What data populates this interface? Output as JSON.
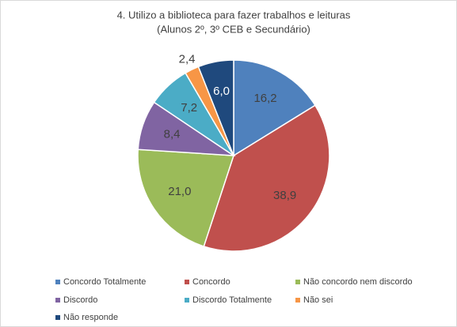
{
  "chart_data": {
    "type": "pie",
    "title": "4. Utilizo a biblioteca para fazer trabalhos e leituras",
    "subtitle": "(Alunos 2º, 3º CEB e Secundário)",
    "categories": [
      "Concordo Totalmente",
      "Concordo",
      "Não concordo nem discordo",
      "Discordo",
      "Discordo Totalmente",
      "Não sei",
      "Não responde"
    ],
    "values": [
      16.2,
      38.9,
      21.0,
      8.4,
      7.2,
      2.4,
      6.0
    ],
    "value_labels": [
      "16,2",
      "38,9",
      "21,0",
      "8,4",
      "7,2",
      "2,4",
      "6,0"
    ],
    "colors": [
      "#4f81bd",
      "#c0504d",
      "#9bbb59",
      "#8064a2",
      "#4bacc6",
      "#f79646",
      "#1f497d"
    ],
    "legend": "bottom"
  }
}
